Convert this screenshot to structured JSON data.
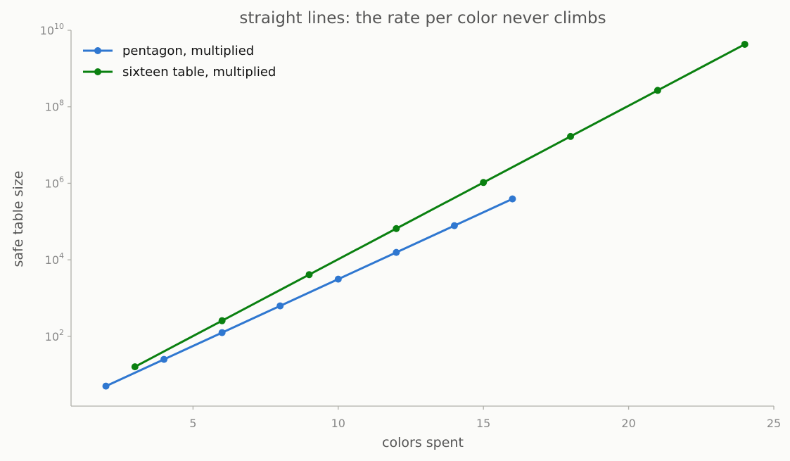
{
  "chart_data": {
    "type": "line",
    "title": "straight lines: the rate per color never climbs",
    "xlabel": "colors spent",
    "ylabel": "safe table size",
    "xlim": [
      0.8,
      25.0
    ],
    "ylim": [
      1.5,
      10000000000
    ],
    "yscale": "log",
    "x_ticks": [
      5,
      10,
      15,
      20,
      25
    ],
    "y_ticks": [
      {
        "value": 100,
        "base": "10",
        "exp": "2"
      },
      {
        "value": 10000,
        "base": "10",
        "exp": "4"
      },
      {
        "value": 1000000,
        "base": "10",
        "exp": "6"
      },
      {
        "value": 100000000,
        "base": "10",
        "exp": "8"
      },
      {
        "value": 10000000000,
        "base": "10",
        "exp": "10"
      }
    ],
    "grid": false,
    "legend_position": "top-left",
    "series": [
      {
        "name": "pentagon, multiplied",
        "color": "#2f77d0",
        "x": [
          2,
          4,
          6,
          8,
          10,
          12,
          14,
          16
        ],
        "y": [
          5,
          25,
          125,
          625,
          3125,
          15625,
          78125,
          390625
        ]
      },
      {
        "name": "sixteen table, multiplied",
        "color": "#0a8010",
        "x": [
          3,
          6,
          9,
          12,
          15,
          18,
          21,
          24
        ],
        "y": [
          16,
          256,
          4096,
          65536,
          1048576,
          16777216,
          268435456,
          4294967296
        ]
      }
    ]
  }
}
